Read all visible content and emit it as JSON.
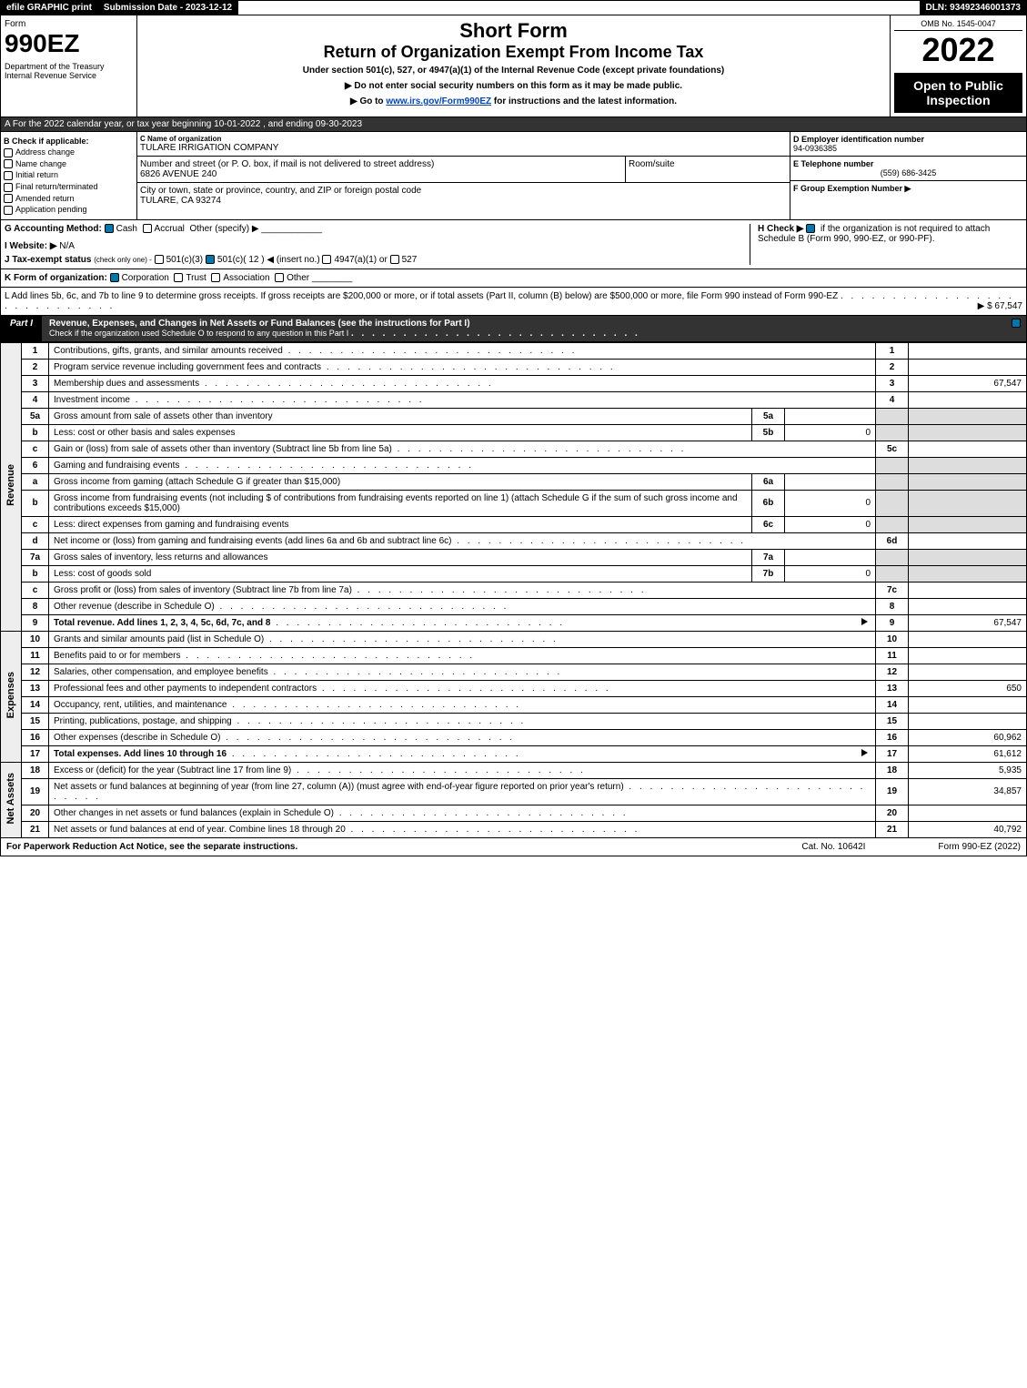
{
  "topbar": {
    "efile": "efile GRAPHIC print",
    "subdate": "Submission Date - 2023-12-12",
    "dln": "DLN: 93492346001373"
  },
  "header": {
    "form_word": "Form",
    "form_num": "990EZ",
    "dept": "Department of the Treasury\nInternal Revenue Service",
    "title_short": "Short Form",
    "title_main": "Return of Organization Exempt From Income Tax",
    "title_under": "Under section 501(c), 527, or 4947(a)(1) of the Internal Revenue Code (except private foundations)",
    "instr1": "▶ Do not enter social security numbers on this form as it may be made public.",
    "instr2_pre": "▶ Go to ",
    "instr2_link": "www.irs.gov/Form990EZ",
    "instr2_post": " for instructions and the latest information.",
    "omb": "OMB No. 1545-0047",
    "year": "2022",
    "open_pub": "Open to Public Inspection"
  },
  "lineA": "A  For the 2022 calendar year, or tax year beginning 10-01-2022 , and ending 09-30-2023",
  "boxB": {
    "hdr": "B  Check if applicable:",
    "opts": [
      "Address change",
      "Name change",
      "Initial return",
      "Final return/terminated",
      "Amended return",
      "Application pending"
    ]
  },
  "boxC": {
    "lbl_name": "C Name of organization",
    "name": "TULARE IRRIGATION COMPANY",
    "lbl_street": "Number and street (or P. O. box, if mail is not delivered to street address)",
    "street": "6826 AVENUE 240",
    "lbl_room": "Room/suite",
    "room": "",
    "lbl_city": "City or town, state or province, country, and ZIP or foreign postal code",
    "city": "TULARE, CA  93274"
  },
  "boxD": {
    "lbl": "D Employer identification number",
    "val": "94-0936385"
  },
  "boxE": {
    "lbl": "E Telephone number",
    "val": "(559) 686-3425"
  },
  "boxF": {
    "lbl": "F Group Exemption Number  ▶",
    "val": ""
  },
  "lineG": {
    "lbl": "G Accounting Method:",
    "cash": "Cash",
    "accrual": "Accrual",
    "other": "Other (specify) ▶"
  },
  "lineH": {
    "lbl": "H  Check ▶",
    "txt": "if the organization is not required to attach Schedule B (Form 990, 990-EZ, or 990-PF)."
  },
  "lineI": {
    "lbl": "I Website: ▶",
    "val": "N/A"
  },
  "lineJ": {
    "lbl": "J Tax-exempt status",
    "sub": "(check only one) -",
    "o1": "501(c)(3)",
    "o2": "501(c)( 12 ) ◀ (insert no.)",
    "o3": "4947(a)(1) or",
    "o4": "527"
  },
  "lineK": {
    "lbl": "K Form of organization:",
    "o1": "Corporation",
    "o2": "Trust",
    "o3": "Association",
    "o4": "Other"
  },
  "lineL": {
    "txt": "L Add lines 5b, 6c, and 7b to line 9 to determine gross receipts. If gross receipts are $200,000 or more, or if total assets (Part II, column (B) below) are $500,000 or more, file Form 990 instead of Form 990-EZ",
    "amt": "▶ $ 67,547"
  },
  "part1": {
    "label": "Part I",
    "title": "Revenue, Expenses, and Changes in Net Assets or Fund Balances (see the instructions for Part I)",
    "check_txt": "Check if the organization used Schedule O to respond to any question in this Part I"
  },
  "sidelabels": {
    "revenue": "Revenue",
    "expenses": "Expenses",
    "netassets": "Net Assets"
  },
  "rows": [
    {
      "n": "1",
      "d": "Contributions, gifts, grants, and similar amounts received",
      "nc": "1",
      "v": ""
    },
    {
      "n": "2",
      "d": "Program service revenue including government fees and contracts",
      "nc": "2",
      "v": ""
    },
    {
      "n": "3",
      "d": "Membership dues and assessments",
      "nc": "3",
      "v": "67,547"
    },
    {
      "n": "4",
      "d": "Investment income",
      "nc": "4",
      "v": ""
    },
    {
      "n": "5a",
      "d": "Gross amount from sale of assets other than inventory",
      "sl": "5a",
      "sv": "",
      "nc": "",
      "v": "",
      "shade": true
    },
    {
      "n": "b",
      "d": "Less: cost or other basis and sales expenses",
      "sl": "5b",
      "sv": "0",
      "nc": "",
      "v": "",
      "shade": true
    },
    {
      "n": "c",
      "d": "Gain or (loss) from sale of assets other than inventory (Subtract line 5b from line 5a)",
      "nc": "5c",
      "v": ""
    },
    {
      "n": "6",
      "d": "Gaming and fundraising events",
      "nc": "",
      "v": "",
      "shade": true
    },
    {
      "n": "a",
      "d": "Gross income from gaming (attach Schedule G if greater than $15,000)",
      "sl": "6a",
      "sv": "",
      "nc": "",
      "v": "",
      "shade": true
    },
    {
      "n": "b",
      "d": "Gross income from fundraising events (not including $                   of contributions from fundraising events reported on line 1) (attach Schedule G if the sum of such gross income and contributions exceeds $15,000)",
      "sl": "6b",
      "sv": "0",
      "nc": "",
      "v": "",
      "shade": true
    },
    {
      "n": "c",
      "d": "Less: direct expenses from gaming and fundraising events",
      "sl": "6c",
      "sv": "0",
      "nc": "",
      "v": "",
      "shade": true
    },
    {
      "n": "d",
      "d": "Net income or (loss) from gaming and fundraising events (add lines 6a and 6b and subtract line 6c)",
      "nc": "6d",
      "v": ""
    },
    {
      "n": "7a",
      "d": "Gross sales of inventory, less returns and allowances",
      "sl": "7a",
      "sv": "",
      "nc": "",
      "v": "",
      "shade": true
    },
    {
      "n": "b",
      "d": "Less: cost of goods sold",
      "sl": "7b",
      "sv": "0",
      "nc": "",
      "v": "",
      "shade": true
    },
    {
      "n": "c",
      "d": "Gross profit or (loss) from sales of inventory (Subtract line 7b from line 7a)",
      "nc": "7c",
      "v": ""
    },
    {
      "n": "8",
      "d": "Other revenue (describe in Schedule O)",
      "nc": "8",
      "v": ""
    },
    {
      "n": "9",
      "d": "Total revenue. Add lines 1, 2, 3, 4, 5c, 6d, 7c, and 8",
      "nc": "9",
      "v": "67,547",
      "bold": true,
      "arrow": true
    }
  ],
  "exp_rows": [
    {
      "n": "10",
      "d": "Grants and similar amounts paid (list in Schedule O)",
      "nc": "10",
      "v": ""
    },
    {
      "n": "11",
      "d": "Benefits paid to or for members",
      "nc": "11",
      "v": ""
    },
    {
      "n": "12",
      "d": "Salaries, other compensation, and employee benefits",
      "nc": "12",
      "v": ""
    },
    {
      "n": "13",
      "d": "Professional fees and other payments to independent contractors",
      "nc": "13",
      "v": "650"
    },
    {
      "n": "14",
      "d": "Occupancy, rent, utilities, and maintenance",
      "nc": "14",
      "v": ""
    },
    {
      "n": "15",
      "d": "Printing, publications, postage, and shipping",
      "nc": "15",
      "v": ""
    },
    {
      "n": "16",
      "d": "Other expenses (describe in Schedule O)",
      "nc": "16",
      "v": "60,962"
    },
    {
      "n": "17",
      "d": "Total expenses. Add lines 10 through 16",
      "nc": "17",
      "v": "61,612",
      "bold": true,
      "arrow": true
    }
  ],
  "na_rows": [
    {
      "n": "18",
      "d": "Excess or (deficit) for the year (Subtract line 17 from line 9)",
      "nc": "18",
      "v": "5,935"
    },
    {
      "n": "19",
      "d": "Net assets or fund balances at beginning of year (from line 27, column (A)) (must agree with end-of-year figure reported on prior year's return)",
      "nc": "19",
      "v": "34,857"
    },
    {
      "n": "20",
      "d": "Other changes in net assets or fund balances (explain in Schedule O)",
      "nc": "20",
      "v": ""
    },
    {
      "n": "21",
      "d": "Net assets or fund balances at end of year. Combine lines 18 through 20",
      "nc": "21",
      "v": "40,792"
    }
  ],
  "footer": {
    "left": "For Paperwork Reduction Act Notice, see the separate instructions.",
    "cat": "Cat. No. 10642I",
    "right": "Form 990-EZ (2022)"
  }
}
